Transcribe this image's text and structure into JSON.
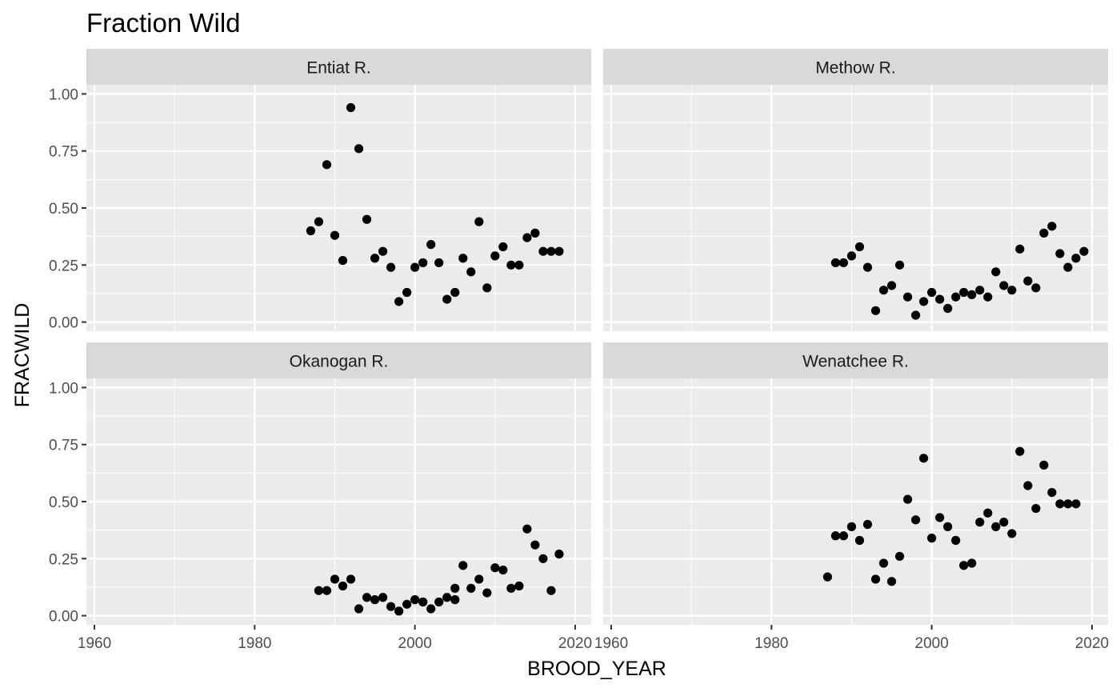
{
  "chart_data": {
    "type": "scatter",
    "title": "Fraction Wild",
    "xlabel": "BROOD_YEAR",
    "ylabel": "FRACWILD",
    "xlim": [
      1959,
      2022
    ],
    "ylim": [
      -0.04,
      1.04
    ],
    "x_ticks": [
      1960,
      1980,
      2000,
      2020
    ],
    "x_tick_labels": [
      "1960",
      "1980",
      "2000",
      "2020"
    ],
    "y_ticks": [
      0,
      0.25,
      0.5,
      0.75,
      1.0
    ],
    "y_tick_labels": [
      "0.00",
      "0.25",
      "0.50",
      "0.75",
      "1.00"
    ],
    "grid": true,
    "legend": "none",
    "colors": {
      "panel_background": "#ebebeb",
      "strip_background": "#d9d9d9",
      "gridline": "#ffffff",
      "point": "#000000",
      "text": "#000000",
      "tick_text": "#4d4d4d"
    },
    "panels": [
      {
        "name": "Entiat R.",
        "x": [
          1987,
          1988,
          1989,
          1990,
          1991,
          1992,
          1993,
          1994,
          1995,
          1996,
          1997,
          1998,
          1999,
          2000,
          2001,
          2002,
          2003,
          2004,
          2005,
          2006,
          2007,
          2008,
          2009,
          2010,
          2011,
          2012,
          2013,
          2014,
          2015,
          2016,
          2017,
          2018
        ],
        "y": [
          0.4,
          0.44,
          0.69,
          0.38,
          0.27,
          0.94,
          0.76,
          0.45,
          0.28,
          0.31,
          0.24,
          0.09,
          0.13,
          0.24,
          0.26,
          0.34,
          0.26,
          0.1,
          0.13,
          0.28,
          0.22,
          0.44,
          0.15,
          0.29,
          0.33,
          0.25,
          0.25,
          0.37,
          0.39,
          0.31,
          0.31,
          0.31
        ]
      },
      {
        "name": "Methow R.",
        "x": [
          1988,
          1989,
          1990,
          1991,
          1992,
          1993,
          1994,
          1995,
          1996,
          1997,
          1998,
          1999,
          2000,
          2001,
          2002,
          2003,
          2004,
          2005,
          2006,
          2007,
          2008,
          2009,
          2010,
          2011,
          2012,
          2013,
          2014,
          2015,
          2016,
          2017,
          2018,
          2019
        ],
        "y": [
          0.26,
          0.26,
          0.29,
          0.33,
          0.24,
          0.05,
          0.14,
          0.16,
          0.25,
          0.11,
          0.03,
          0.09,
          0.13,
          0.1,
          0.06,
          0.11,
          0.13,
          0.12,
          0.14,
          0.11,
          0.22,
          0.16,
          0.14,
          0.32,
          0.18,
          0.15,
          0.39,
          0.42,
          0.3,
          0.24,
          0.28,
          0.31
        ]
      },
      {
        "name": "Okanogan R.",
        "x": [
          1988,
          1989,
          1990,
          1991,
          1992,
          1993,
          1994,
          1995,
          1996,
          1997,
          1998,
          1999,
          2000,
          2001,
          2002,
          2003,
          2004,
          2005,
          2005,
          2006,
          2007,
          2008,
          2009,
          2010,
          2011,
          2012,
          2013,
          2014,
          2015,
          2016,
          2017,
          2018
        ],
        "y": [
          0.11,
          0.11,
          0.16,
          0.13,
          0.16,
          0.03,
          0.08,
          0.07,
          0.08,
          0.04,
          0.02,
          0.05,
          0.07,
          0.06,
          0.03,
          0.06,
          0.08,
          0.07,
          0.12,
          0.22,
          0.12,
          0.16,
          0.1,
          0.21,
          0.2,
          0.12,
          0.13,
          0.38,
          0.31,
          0.25,
          0.11,
          0.27
        ]
      },
      {
        "name": "Wenatchee R.",
        "x": [
          1987,
          1988,
          1989,
          1990,
          1991,
          1992,
          1993,
          1994,
          1995,
          1996,
          1997,
          1998,
          1999,
          2000,
          2001,
          2002,
          2003,
          2004,
          2005,
          2006,
          2007,
          2008,
          2009,
          2010,
          2011,
          2012,
          2013,
          2014,
          2015,
          2016,
          2017,
          2018
        ],
        "y": [
          0.17,
          0.35,
          0.35,
          0.39,
          0.33,
          0.4,
          0.16,
          0.23,
          0.15,
          0.26,
          0.51,
          0.42,
          0.69,
          0.34,
          0.43,
          0.39,
          0.33,
          0.22,
          0.23,
          0.41,
          0.45,
          0.39,
          0.41,
          0.36,
          0.72,
          0.57,
          0.47,
          0.66,
          0.54,
          0.49,
          0.49,
          0.49
        ]
      }
    ]
  }
}
